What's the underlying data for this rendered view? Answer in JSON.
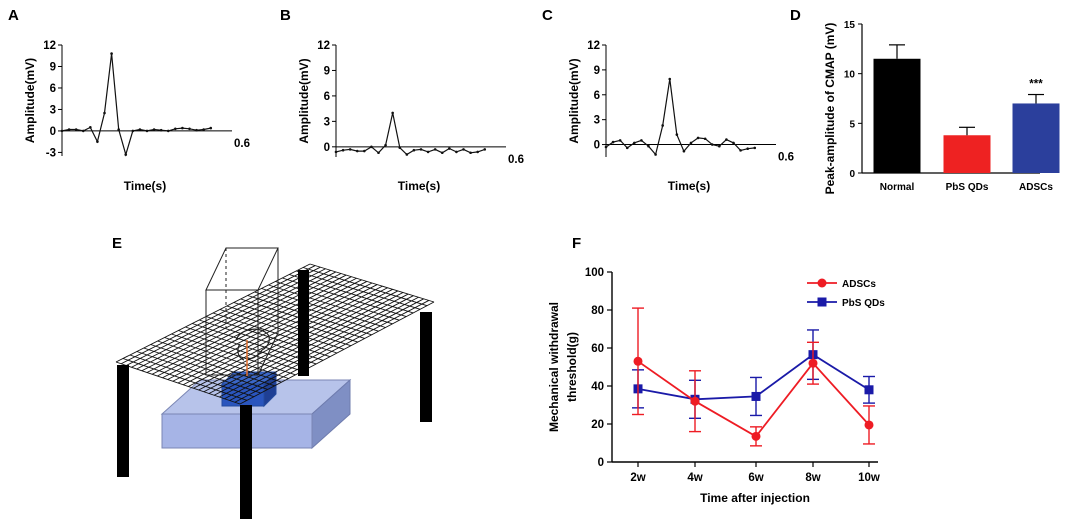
{
  "chart_data": [
    {
      "panel": "A",
      "type": "line",
      "xlabel": "Time(s)",
      "ylabel": "Amplitude(mV)",
      "y_ticks": [
        "12",
        "9",
        "6",
        "3",
        "0",
        "-3"
      ],
      "x_end_label": "0.6",
      "x": [
        0,
        0.025,
        0.05,
        0.075,
        0.1,
        0.125,
        0.15,
        0.175,
        0.2,
        0.225,
        0.25,
        0.275,
        0.3,
        0.325,
        0.35,
        0.375,
        0.4,
        0.425,
        0.45,
        0.475,
        0.5,
        0.525
      ],
      "values": [
        0,
        0.2,
        0.2,
        0,
        0.5,
        -1.5,
        2.5,
        10.8,
        0.2,
        -3.3,
        0,
        0.2,
        0,
        0.2,
        0.1,
        0,
        0.3,
        0.4,
        0.3,
        0.1,
        0.2,
        0.4
      ],
      "ylim": [
        -3.5,
        12
      ]
    },
    {
      "panel": "B",
      "type": "line",
      "xlabel": "Time(s)",
      "ylabel": "Amplitude(mV)",
      "y_ticks": [
        "12",
        "9",
        "6",
        "3",
        "0"
      ],
      "x_end_label": "0.6",
      "x": [
        0,
        0.025,
        0.05,
        0.075,
        0.1,
        0.125,
        0.15,
        0.175,
        0.2,
        0.225,
        0.25,
        0.275,
        0.3,
        0.325,
        0.35,
        0.375,
        0.4,
        0.425,
        0.45,
        0.475,
        0.5,
        0.525
      ],
      "values": [
        -0.6,
        -0.4,
        -0.3,
        -0.5,
        -0.5,
        0,
        -0.7,
        0.2,
        4,
        -0.1,
        -0.9,
        -0.4,
        -0.3,
        -0.6,
        -0.3,
        -0.7,
        -0.2,
        -0.6,
        -0.3,
        -0.7,
        -0.6,
        -0.3
      ],
      "ylim": [
        -1.2,
        12
      ]
    },
    {
      "panel": "C",
      "type": "line",
      "xlabel": "Time(s)",
      "ylabel": "Amplitude(mV)",
      "y_ticks": [
        "12",
        "9",
        "6",
        "3",
        "0"
      ],
      "x_end_label": "0.6",
      "x": [
        0,
        0.025,
        0.05,
        0.075,
        0.1,
        0.125,
        0.15,
        0.175,
        0.2,
        0.225,
        0.25,
        0.275,
        0.3,
        0.325,
        0.35,
        0.375,
        0.4,
        0.425,
        0.45,
        0.475,
        0.5,
        0.525
      ],
      "values": [
        -0.3,
        0.3,
        0.5,
        -0.4,
        0.2,
        0.5,
        -0.2,
        -1.2,
        2.3,
        7.9,
        1.2,
        -0.8,
        0.2,
        0.8,
        0.7,
        0,
        -0.2,
        0.6,
        0.2,
        -0.7,
        -0.5,
        -0.4
      ],
      "ylim": [
        -1.5,
        12
      ]
    },
    {
      "panel": "D",
      "type": "bar",
      "categories": [
        "Normal",
        "PbS QDs",
        "ADSCs"
      ],
      "values": [
        11.5,
        3.8,
        7
      ],
      "errors": [
        1.4,
        0.8,
        0.9
      ],
      "colors": [
        "#000000",
        "#ee2222",
        "#2b3f9c"
      ],
      "annotation": "***",
      "annotation_category": "ADSCs",
      "ylabel": "Peak-amplitude of CMAP (mV)",
      "y_ticks": [
        "0",
        "5",
        "10",
        "15"
      ],
      "ylim": [
        0,
        15
      ]
    },
    {
      "panel": "F",
      "type": "line",
      "categories": [
        "2w",
        "4w",
        "6w",
        "8w",
        "10w"
      ],
      "series": [
        {
          "name": "ADSCs",
          "color": "#ee1c24",
          "marker": "circle",
          "values": [
            53,
            32,
            13.5,
            52,
            19.5
          ],
          "errors": [
            28,
            16,
            5,
            11,
            10
          ]
        },
        {
          "name": "PbS QDs",
          "color": "#1a1aa8",
          "marker": "square",
          "values": [
            38.5,
            33,
            34.5,
            56.5,
            38
          ],
          "errors": [
            10,
            10,
            10,
            13,
            7
          ]
        }
      ],
      "xlabel": "Time after injection",
      "ylabel_lines": [
        "Mechanical withdrawal",
        "threshold(g)"
      ],
      "y_ticks": [
        "0",
        "20",
        "40",
        "60",
        "80",
        "100"
      ],
      "ylim": [
        0,
        100
      ]
    }
  ],
  "panel_labels": {
    "a": "A",
    "b": "B",
    "c": "C",
    "d": "D",
    "e": "E",
    "f": "F"
  }
}
